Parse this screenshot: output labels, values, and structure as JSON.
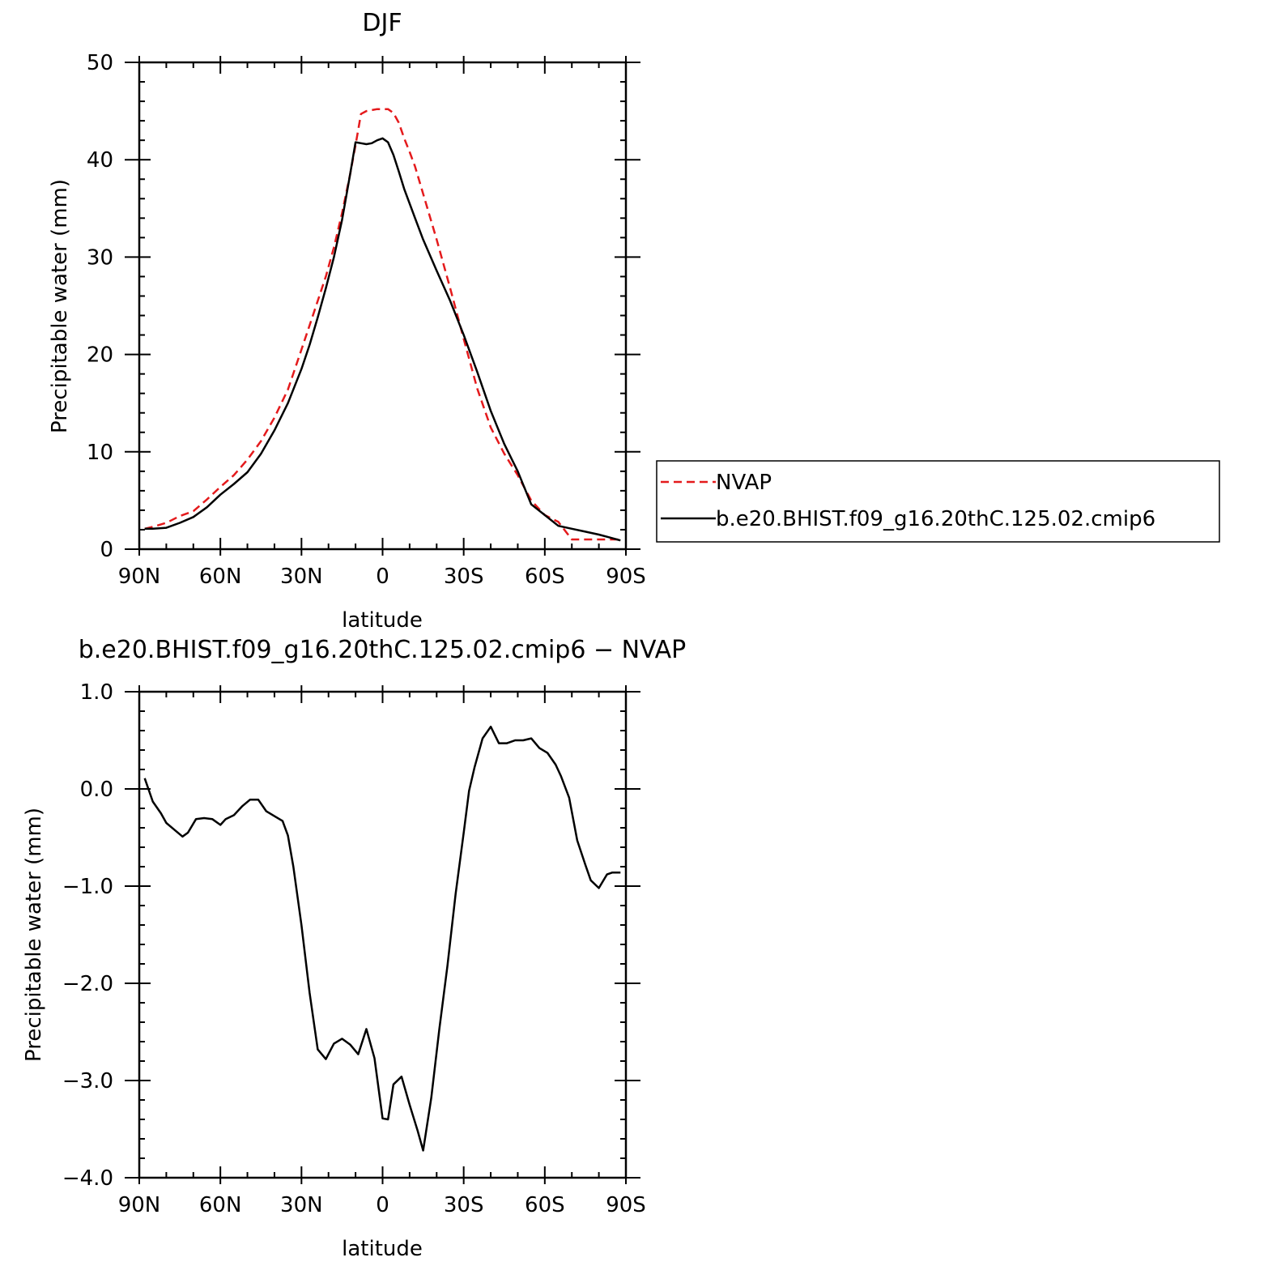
{
  "chart_data": [
    {
      "type": "line",
      "title": "DJF",
      "xlabel": "latitude",
      "ylabel": "Precipitable water (mm)",
      "xlim": [
        90,
        -90
      ],
      "ylim": [
        0,
        50
      ],
      "xticks": [
        90,
        60,
        30,
        0,
        -30,
        -60,
        -90
      ],
      "xtick_labels": [
        "90N",
        "60N",
        "30N",
        "0",
        "30S",
        "60S",
        "90S"
      ],
      "yticks": [
        0,
        10,
        20,
        30,
        40,
        50
      ],
      "ytick_labels": [
        "0",
        "10",
        "20",
        "30",
        "40",
        "50"
      ],
      "grid": false,
      "legend_position": "right",
      "series": [
        {
          "name": "NVAP",
          "color": "#e41a1c",
          "style": "dashed",
          "x": [
            88,
            85,
            80,
            75,
            70,
            65,
            60,
            55,
            50,
            45,
            40,
            35,
            30,
            27,
            24,
            21,
            18,
            15,
            12,
            10,
            8,
            6,
            4,
            2,
            0,
            -2,
            -4,
            -6,
            -8,
            -10,
            -12,
            -15,
            -20,
            -25,
            -30,
            -35,
            -40,
            -45,
            -50,
            -55,
            -60,
            -65,
            -70,
            -75,
            -80,
            -84,
            -88
          ],
          "y": [
            2.1,
            2.3,
            2.7,
            3.4,
            3.9,
            5.1,
            6.4,
            7.6,
            9.2,
            11.1,
            13.5,
            16.4,
            20.5,
            23.0,
            25.5,
            28.0,
            31.0,
            34.5,
            38.5,
            41.5,
            44.7,
            45.0,
            45.1,
            45.2,
            45.2,
            45.2,
            44.8,
            43.8,
            42.2,
            40.8,
            39.3,
            36.5,
            31.8,
            26.8,
            21.6,
            16.5,
            12.5,
            9.8,
            7.6,
            5.0,
            3.5,
            2.8,
            1.0,
            1.0,
            1.0,
            1.0,
            1.0
          ]
        },
        {
          "name": "b.e20.BHIST.f09_g16.20thC.125.02.cmip6",
          "color": "#000000",
          "style": "solid",
          "x": [
            88,
            85,
            80,
            75,
            70,
            65,
            60,
            55,
            50,
            45,
            40,
            35,
            30,
            27,
            24,
            21,
            18,
            15,
            12,
            10,
            8,
            6,
            4,
            2,
            0,
            -2,
            -4,
            -6,
            -8,
            -10,
            -12,
            -15,
            -20,
            -25,
            -30,
            -35,
            -40,
            -45,
            -50,
            -55,
            -60,
            -65,
            -70,
            -75,
            -80,
            -84,
            -88
          ],
          "y": [
            2.1,
            2.1,
            2.2,
            2.7,
            3.3,
            4.3,
            5.6,
            6.7,
            7.9,
            9.8,
            12.2,
            15.0,
            18.5,
            21.0,
            23.8,
            26.8,
            30.0,
            33.8,
            38.5,
            41.8,
            41.7,
            41.6,
            41.7,
            42.0,
            42.2,
            41.8,
            40.5,
            38.8,
            37.0,
            35.5,
            34.0,
            31.8,
            28.6,
            25.5,
            22.0,
            18.2,
            14.2,
            10.8,
            8.0,
            4.6,
            3.5,
            2.4,
            2.1,
            1.8,
            1.5,
            1.2,
            0.9
          ]
        }
      ]
    },
    {
      "type": "line",
      "title": "b.e20.BHIST.f09_g16.20thC.125.02.cmip6 − NVAP",
      "xlabel": "latitude",
      "ylabel": "Precipitable water (mm)",
      "xlim": [
        90,
        -90
      ],
      "ylim": [
        -4.0,
        1.0
      ],
      "xticks": [
        90,
        60,
        30,
        0,
        -30,
        -60,
        -90
      ],
      "xtick_labels": [
        "90N",
        "60N",
        "30N",
        "0",
        "30S",
        "60S",
        "90S"
      ],
      "yticks": [
        -4.0,
        -3.0,
        -2.0,
        -1.0,
        0.0,
        1.0
      ],
      "ytick_labels": [
        "−4.0",
        "−3.0",
        "−2.0",
        "−1.0",
        "0.0",
        "1.0"
      ],
      "grid": false,
      "series": [
        {
          "color": "#000000",
          "style": "solid",
          "x": [
            88,
            85,
            82,
            80,
            77,
            74,
            72,
            69,
            66,
            63,
            60,
            58,
            55,
            52,
            49,
            46,
            43,
            40,
            37,
            35,
            33,
            30,
            27,
            24,
            21,
            18,
            15,
            12,
            9,
            6,
            3,
            0,
            -2,
            -4,
            -7,
            -10,
            -13,
            -15,
            -18,
            -21,
            -24,
            -27,
            -30,
            -32,
            -34,
            -37,
            -40,
            -43,
            -46,
            -49,
            -52,
            -55,
            -58,
            -61,
            -64,
            -66,
            -69,
            -72,
            -75,
            -77,
            -80,
            -83,
            -85,
            -88
          ],
          "y": [
            0.11,
            -0.13,
            -0.25,
            -0.35,
            -0.42,
            -0.49,
            -0.45,
            -0.31,
            -0.3,
            -0.31,
            -0.37,
            -0.31,
            -0.27,
            -0.18,
            -0.11,
            -0.11,
            -0.23,
            -0.28,
            -0.33,
            -0.48,
            -0.8,
            -1.4,
            -2.1,
            -2.68,
            -2.78,
            -2.62,
            -2.57,
            -2.63,
            -2.73,
            -2.47,
            -2.77,
            -3.39,
            -3.4,
            -3.04,
            -2.96,
            -3.25,
            -3.52,
            -3.72,
            -3.18,
            -2.47,
            -1.82,
            -1.08,
            -0.45,
            -0.02,
            0.22,
            0.52,
            0.64,
            0.47,
            0.47,
            0.5,
            0.5,
            0.52,
            0.42,
            0.37,
            0.25,
            0.13,
            -0.09,
            -0.53,
            -0.78,
            -0.94,
            -1.02,
            -0.88,
            -0.86,
            -0.86
          ]
        }
      ]
    }
  ]
}
